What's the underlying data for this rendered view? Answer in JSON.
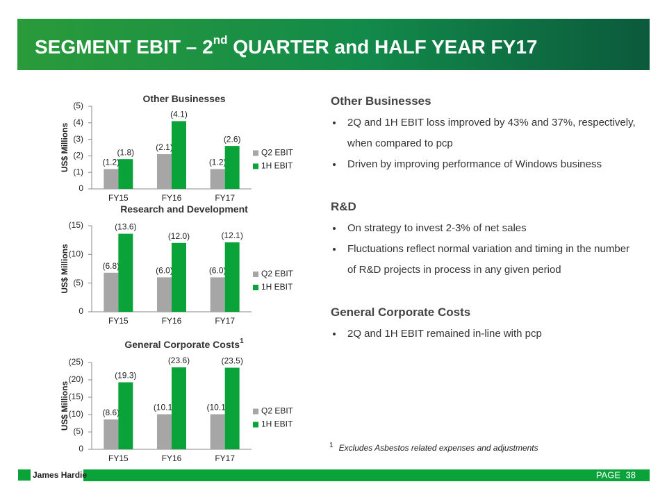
{
  "header": {
    "title": [
      "SEGMENT EBIT – 2",
      "nd",
      " QUARTER and HALF YEAR FY17"
    ]
  },
  "chart_data": [
    {
      "type": "bar",
      "title": "Other Businesses",
      "ylabel": "US$ Millions",
      "categories": [
        "FY15",
        "FY16",
        "FY17"
      ],
      "series": [
        {
          "name": "Q2 EBIT",
          "color": "#a6a6a6",
          "values": [
            -1.2,
            -2.1,
            -1.2
          ],
          "value_labels": [
            "(1.2)",
            "(2.1)",
            "(1.2)"
          ]
        },
        {
          "name": "1H EBIT",
          "color": "#0aa33a",
          "values": [
            -1.8,
            -4.1,
            -2.6
          ],
          "value_labels": [
            "(1.8)",
            "(4.1)",
            "(2.6)"
          ]
        }
      ],
      "ylim": [
        0,
        -5
      ],
      "yticks": [
        0,
        {
          "value": -1,
          "label": "(1)"
        },
        {
          "value": -2,
          "label": "(2)"
        },
        {
          "value": -3,
          "label": "(3)"
        },
        {
          "value": -4,
          "label": "(4)"
        },
        {
          "value": -5,
          "label": "(5)"
        }
      ]
    },
    {
      "type": "bar",
      "title": "Research and Development",
      "ylabel": "US$ Millions",
      "categories": [
        "FY15",
        "FY16",
        "FY17"
      ],
      "series": [
        {
          "name": "Q2 EBIT",
          "color": "#a6a6a6",
          "values": [
            -6.8,
            -6.0,
            -6.0
          ],
          "value_labels": [
            "(6.8)",
            "(6.0)",
            "(6.0)"
          ]
        },
        {
          "name": "1H EBIT",
          "color": "#0aa33a",
          "values": [
            -13.6,
            -12.0,
            -12.1
          ],
          "value_labels": [
            "(13.6)",
            "(12.0)",
            "(12.1)"
          ]
        }
      ],
      "ylim": [
        0,
        -15
      ],
      "yticks": [
        0,
        {
          "value": -5,
          "label": "(5)"
        },
        {
          "value": -10,
          "label": "(10)"
        },
        {
          "value": -15,
          "label": "(15)"
        }
      ]
    },
    {
      "type": "bar",
      "title": "General Corporate Costs",
      "title_sup": "1",
      "ylabel": "US$ Millions",
      "categories": [
        "FY15",
        "FY16",
        "FY17"
      ],
      "series": [
        {
          "name": "Q2 EBIT",
          "color": "#a6a6a6",
          "values": [
            -8.6,
            -10.1,
            -10.1
          ],
          "value_labels": [
            "(8.6)",
            "(10.1)",
            "(10.1)"
          ]
        },
        {
          "name": "1H EBIT",
          "color": "#0aa33a",
          "values": [
            -19.3,
            -23.6,
            -23.5
          ],
          "value_labels": [
            "(19.3)",
            "(23.6)",
            "(23.5)"
          ]
        }
      ],
      "ylim": [
        0,
        -25
      ],
      "yticks": [
        0,
        {
          "value": -5,
          "label": "(5)"
        },
        {
          "value": -10,
          "label": "(10)"
        },
        {
          "value": -15,
          "label": "(15)"
        },
        {
          "value": -20,
          "label": "(20)"
        },
        {
          "value": -25,
          "label": "(25)"
        }
      ]
    }
  ],
  "sections": [
    {
      "heading": "Other Businesses",
      "bullets": [
        "2Q and 1H EBIT loss improved by 43% and 37%, respectively, when compared to pcp",
        "Driven by improving performance of Windows business"
      ]
    },
    {
      "heading": "R&D",
      "bullets": [
        "On strategy to invest 2-3% of net sales",
        "Fluctuations reflect normal variation and timing in the number of R&D projects in process in any given period"
      ]
    },
    {
      "heading": "General Corporate Costs",
      "bullets": [
        "2Q and 1H EBIT remained in-line with pcp"
      ]
    }
  ],
  "footnote": {
    "mark": "1",
    "text": "Excludes Asbestos related expenses and adjustments"
  },
  "footer": {
    "logo": "James Hardie",
    "page_label": "PAGE",
    "page_number": "38"
  }
}
